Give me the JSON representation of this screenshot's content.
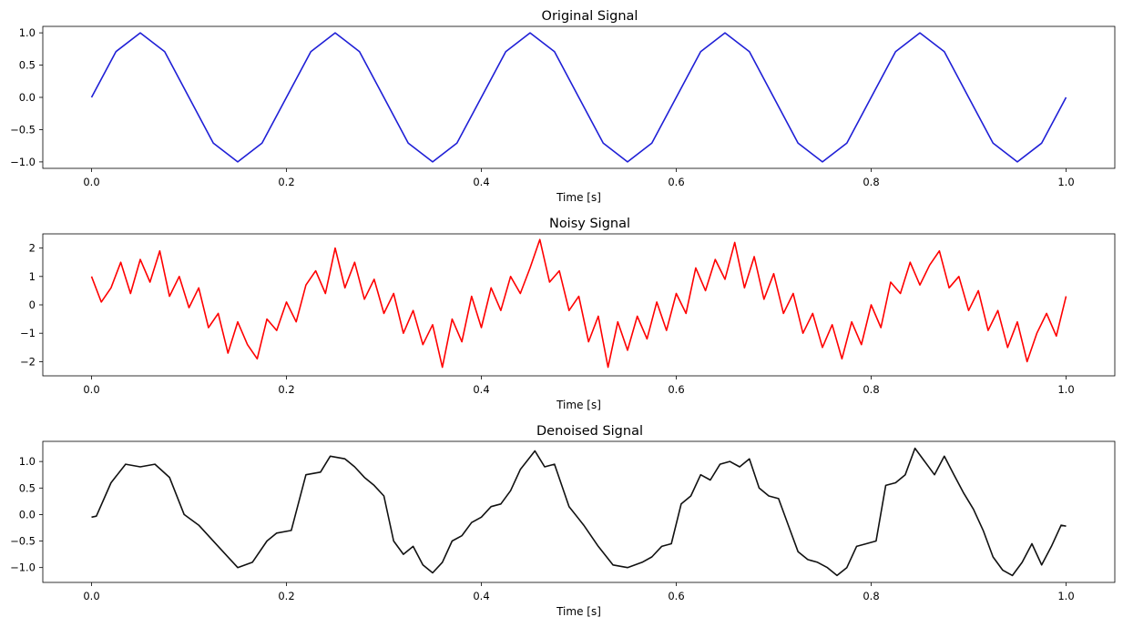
{
  "chart_data": [
    {
      "type": "line",
      "title": "Original Signal",
      "xlabel": "Time [s]",
      "ylabel": "",
      "xlim": [
        -0.05,
        1.05
      ],
      "ylim": [
        -1.1,
        1.1
      ],
      "xticks": [
        0.0,
        0.2,
        0.4,
        0.6,
        0.8,
        1.0
      ],
      "xtick_labels": [
        "0.0",
        "0.2",
        "0.4",
        "0.6",
        "0.8",
        "1.0"
      ],
      "yticks": [
        1.0,
        0.5,
        0.0,
        -0.5,
        -1.0
      ],
      "ytick_labels": [
        "1.0",
        "0.5",
        "0.0",
        "−0.5",
        "−1.0"
      ],
      "grid": false,
      "series": [
        {
          "color": "#1f1fd6",
          "x": [
            0.0,
            0.025,
            0.05,
            0.075,
            0.1,
            0.125,
            0.15,
            0.175,
            0.2,
            0.225,
            0.25,
            0.275,
            0.3,
            0.325,
            0.35,
            0.375,
            0.4,
            0.425,
            0.45,
            0.475,
            0.5,
            0.525,
            0.55,
            0.575,
            0.6,
            0.625,
            0.65,
            0.675,
            0.7,
            0.725,
            0.75,
            0.775,
            0.8,
            0.825,
            0.85,
            0.875,
            0.9,
            0.925,
            0.95,
            0.975,
            1.0
          ],
          "y": [
            0.0,
            0.71,
            1.0,
            0.71,
            0.0,
            -0.71,
            -1.0,
            -0.71,
            0.0,
            0.71,
            1.0,
            0.71,
            0.0,
            -0.71,
            -1.0,
            -0.71,
            0.0,
            0.71,
            1.0,
            0.71,
            0.0,
            -0.71,
            -1.0,
            -0.71,
            0.0,
            0.71,
            1.0,
            0.71,
            0.0,
            -0.71,
            -1.0,
            -0.71,
            0.0,
            0.71,
            1.0,
            0.71,
            0.0,
            -0.71,
            -1.0,
            -0.71,
            0.0
          ]
        }
      ]
    },
    {
      "type": "line",
      "title": "Noisy Signal",
      "xlabel": "Time [s]",
      "ylabel": "",
      "xlim": [
        -0.05,
        1.05
      ],
      "ylim": [
        -2.5,
        2.5
      ],
      "xticks": [
        0.0,
        0.2,
        0.4,
        0.6,
        0.8,
        1.0
      ],
      "xtick_labels": [
        "0.0",
        "0.2",
        "0.4",
        "0.6",
        "0.8",
        "1.0"
      ],
      "yticks": [
        2,
        1,
        0,
        -1,
        -2
      ],
      "ytick_labels": [
        "2",
        "1",
        "0",
        "−1",
        "−2"
      ],
      "grid": false,
      "series": [
        {
          "color": "#ff0000",
          "x": [
            0.0,
            0.01,
            0.02,
            0.03,
            0.04,
            0.05,
            0.06,
            0.07,
            0.08,
            0.09,
            0.1,
            0.11,
            0.12,
            0.13,
            0.14,
            0.15,
            0.16,
            0.17,
            0.18,
            0.19,
            0.2,
            0.21,
            0.22,
            0.23,
            0.24,
            0.25,
            0.26,
            0.27,
            0.28,
            0.29,
            0.3,
            0.31,
            0.32,
            0.33,
            0.34,
            0.35,
            0.36,
            0.37,
            0.38,
            0.39,
            0.4,
            0.41,
            0.42,
            0.43,
            0.44,
            0.45,
            0.46,
            0.47,
            0.48,
            0.49,
            0.5,
            0.51,
            0.52,
            0.53,
            0.54,
            0.55,
            0.56,
            0.57,
            0.58,
            0.59,
            0.6,
            0.61,
            0.62,
            0.63,
            0.64,
            0.65,
            0.66,
            0.67,
            0.68,
            0.69,
            0.7,
            0.71,
            0.72,
            0.73,
            0.74,
            0.75,
            0.76,
            0.77,
            0.78,
            0.79,
            0.8,
            0.81,
            0.82,
            0.83,
            0.84,
            0.85,
            0.86,
            0.87,
            0.88,
            0.89,
            0.9,
            0.91,
            0.92,
            0.93,
            0.94,
            0.95,
            0.96,
            0.97,
            0.98,
            0.99,
            1.0
          ],
          "y": [
            1.0,
            0.1,
            0.6,
            1.5,
            0.4,
            1.6,
            0.8,
            1.9,
            0.3,
            1.0,
            -0.1,
            0.6,
            -0.8,
            -0.3,
            -1.7,
            -0.6,
            -1.4,
            -1.9,
            -0.5,
            -0.9,
            0.1,
            -0.6,
            0.7,
            1.2,
            0.4,
            2.0,
            0.6,
            1.5,
            0.2,
            0.9,
            -0.3,
            0.4,
            -1.0,
            -0.2,
            -1.4,
            -0.7,
            -2.2,
            -0.5,
            -1.3,
            0.3,
            -0.8,
            0.6,
            -0.2,
            1.0,
            0.4,
            1.3,
            2.3,
            0.8,
            1.2,
            -0.2,
            0.3,
            -1.3,
            -0.4,
            -2.2,
            -0.6,
            -1.6,
            -0.4,
            -1.2,
            0.1,
            -0.9,
            0.4,
            -0.3,
            1.3,
            0.5,
            1.6,
            0.9,
            2.2,
            0.6,
            1.7,
            0.2,
            1.1,
            -0.3,
            0.4,
            -1.0,
            -0.3,
            -1.5,
            -0.7,
            -1.9,
            -0.6,
            -1.4,
            0.0,
            -0.8,
            0.8,
            0.4,
            1.5,
            0.7,
            1.4,
            1.9,
            0.6,
            1.0,
            -0.2,
            0.5,
            -0.9,
            -0.2,
            -1.5,
            -0.6,
            -2.0,
            -1.0,
            -0.3,
            -1.1,
            0.3
          ]
        }
      ]
    },
    {
      "type": "line",
      "title": "Denoised Signal",
      "xlabel": "Time [s]",
      "ylabel": "",
      "xlim": [
        -0.05,
        1.05
      ],
      "ylim": [
        -1.28,
        1.38
      ],
      "xticks": [
        0.0,
        0.2,
        0.4,
        0.6,
        0.8,
        1.0
      ],
      "xtick_labels": [
        "0.0",
        "0.2",
        "0.4",
        "0.6",
        "0.8",
        "1.0"
      ],
      "yticks": [
        1.0,
        0.5,
        0.0,
        -0.5,
        -1.0
      ],
      "ytick_labels": [
        "1.0",
        "0.5",
        "0.0",
        "−0.5",
        "−1.0"
      ],
      "grid": false,
      "series": [
        {
          "color": "#111111",
          "x": [
            0.0,
            0.005,
            0.02,
            0.035,
            0.05,
            0.065,
            0.08,
            0.095,
            0.11,
            0.13,
            0.15,
            0.165,
            0.18,
            0.19,
            0.205,
            0.22,
            0.235,
            0.245,
            0.26,
            0.27,
            0.28,
            0.29,
            0.3,
            0.31,
            0.32,
            0.33,
            0.34,
            0.35,
            0.36,
            0.37,
            0.38,
            0.39,
            0.4,
            0.41,
            0.42,
            0.43,
            0.44,
            0.455,
            0.465,
            0.475,
            0.49,
            0.505,
            0.52,
            0.535,
            0.55,
            0.565,
            0.575,
            0.585,
            0.595,
            0.605,
            0.615,
            0.625,
            0.635,
            0.645,
            0.655,
            0.665,
            0.675,
            0.685,
            0.695,
            0.705,
            0.715,
            0.725,
            0.735,
            0.745,
            0.755,
            0.765,
            0.775,
            0.785,
            0.795,
            0.805,
            0.815,
            0.825,
            0.835,
            0.845,
            0.855,
            0.865,
            0.875,
            0.885,
            0.895,
            0.905,
            0.915,
            0.925,
            0.935,
            0.945,
            0.955,
            0.965,
            0.975,
            0.985,
            0.995,
            1.0
          ],
          "y": [
            -0.05,
            -0.03,
            0.6,
            0.95,
            0.9,
            0.95,
            0.7,
            0.0,
            -0.2,
            -0.6,
            -1.0,
            -0.9,
            -0.5,
            -0.35,
            -0.3,
            0.75,
            0.8,
            1.1,
            1.05,
            0.9,
            0.7,
            0.55,
            0.35,
            -0.5,
            -0.75,
            -0.6,
            -0.95,
            -1.1,
            -0.9,
            -0.5,
            -0.4,
            -0.15,
            -0.05,
            0.15,
            0.2,
            0.45,
            0.85,
            1.2,
            0.9,
            0.95,
            0.15,
            -0.2,
            -0.6,
            -0.95,
            -1.0,
            -0.9,
            -0.8,
            -0.6,
            -0.55,
            0.2,
            0.35,
            0.75,
            0.65,
            0.95,
            1.0,
            0.9,
            1.05,
            0.5,
            0.35,
            0.3,
            -0.2,
            -0.7,
            -0.85,
            -0.9,
            -1.0,
            -1.15,
            -1.0,
            -0.6,
            -0.55,
            -0.5,
            0.55,
            0.6,
            0.75,
            1.25,
            1.0,
            0.75,
            1.1,
            0.75,
            0.4,
            0.1,
            -0.3,
            -0.8,
            -1.05,
            -1.15,
            -0.9,
            -0.55,
            -0.95,
            -0.6,
            -0.2,
            -0.22
          ]
        }
      ]
    }
  ]
}
